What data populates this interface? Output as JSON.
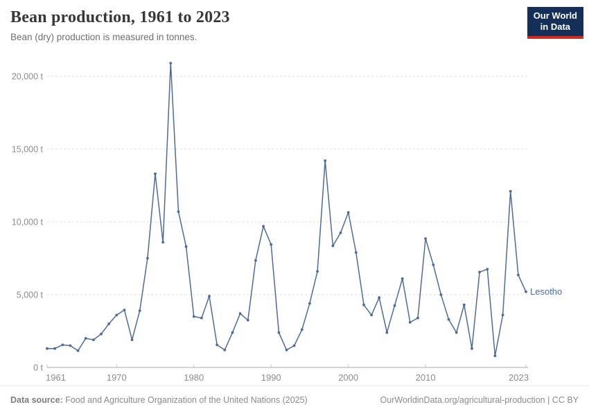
{
  "header": {
    "title": "Bean production, 1961 to 2023",
    "subtitle": "Bean (dry) production is measured in tonnes."
  },
  "logo": {
    "line1": "Our World",
    "line2": "in Data",
    "bg_color": "#143059",
    "bar_color": "#d42b21"
  },
  "chart_data": {
    "type": "line",
    "title": "Bean production, 1961 to 2023",
    "ylabel": "tonnes",
    "xlabel": "",
    "grid": "horizontal-dashed",
    "legend_position": "end-of-line-label",
    "xlim": [
      1961,
      2023
    ],
    "ylim": [
      0,
      20000
    ],
    "x_ticks": [
      1961,
      1970,
      1980,
      1990,
      2000,
      2010,
      2023
    ],
    "y_ticks": [
      0,
      5000,
      10000,
      15000,
      20000
    ],
    "y_tick_suffix": " t",
    "x": [
      1961,
      1962,
      1963,
      1964,
      1965,
      1966,
      1967,
      1968,
      1969,
      1970,
      1971,
      1972,
      1973,
      1974,
      1975,
      1976,
      1977,
      1978,
      1979,
      1980,
      1981,
      1982,
      1983,
      1984,
      1985,
      1986,
      1987,
      1988,
      1989,
      1990,
      1991,
      1992,
      1993,
      1994,
      1995,
      1996,
      1997,
      1998,
      1999,
      2000,
      2001,
      2002,
      2003,
      2004,
      2005,
      2006,
      2007,
      2008,
      2009,
      2010,
      2011,
      2012,
      2013,
      2014,
      2015,
      2016,
      2017,
      2018,
      2019,
      2020,
      2021,
      2022,
      2023
    ],
    "series": [
      {
        "name": "Lesotho",
        "color": "#4c6a9c",
        "values": [
          1300,
          1300,
          1550,
          1500,
          1150,
          2000,
          1900,
          2300,
          3000,
          3600,
          3950,
          1900,
          3900,
          7500,
          13300,
          8600,
          20900,
          10700,
          8300,
          3500,
          3400,
          4900,
          1550,
          1200,
          2400,
          3700,
          3250,
          7350,
          9700,
          8450,
          2400,
          1200,
          1500,
          2600,
          4400,
          6600,
          14200,
          8350,
          9250,
          10650,
          7900,
          4300,
          3600,
          4800,
          2400,
          4250,
          6100,
          3100,
          3400,
          8850,
          7050,
          5000,
          3300,
          2400,
          4300,
          1300,
          6550,
          6750,
          800,
          3600,
          12100,
          6350,
          5200
        ]
      }
    ]
  },
  "footer": {
    "source_label": "Data source:",
    "source_text": " Food and Agriculture Organization of the United Nations (2025)",
    "credit": "OurWorldinData.org/agricultural-production | CC BY"
  }
}
